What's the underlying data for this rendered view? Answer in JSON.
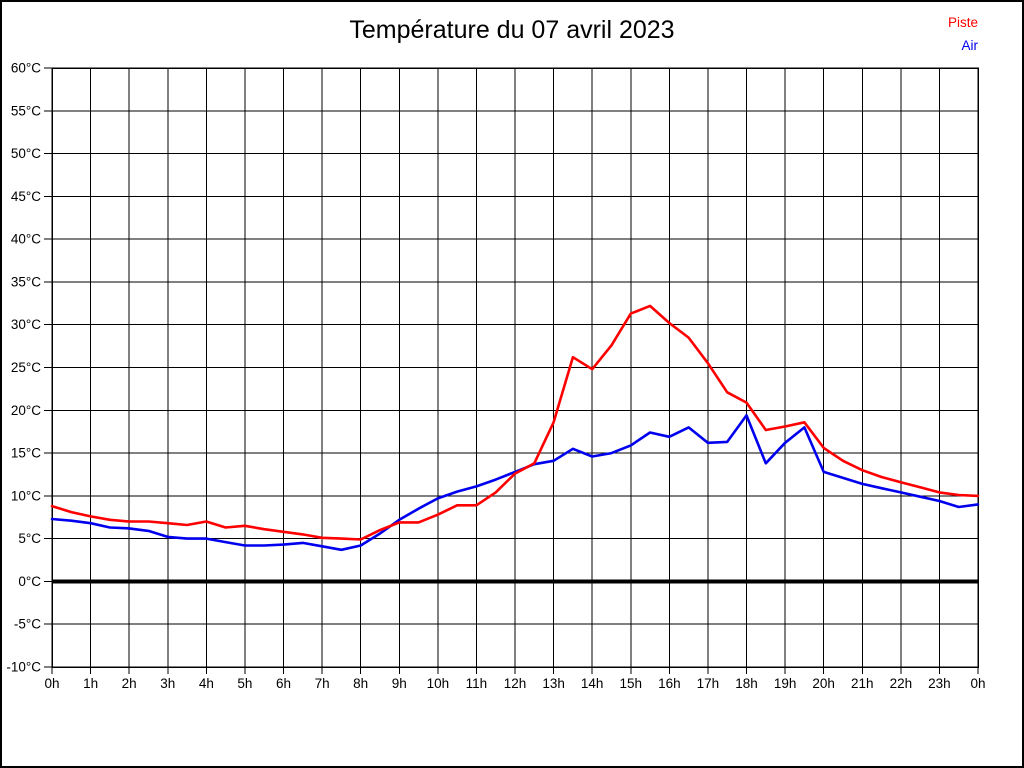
{
  "title": "Température du 07 avril 2023",
  "legend": [
    {
      "label": "Piste",
      "color": "#ff0000"
    },
    {
      "label": "Air",
      "color": "#0000ee"
    }
  ],
  "axes": {
    "y_tick_labels": [
      "60°C",
      "55°C",
      "50°C",
      "45°C",
      "40°C",
      "35°C",
      "30°C",
      "25°C",
      "20°C",
      "15°C",
      "10°C",
      "5°C",
      "0°C",
      "-5°C",
      "-10°C"
    ],
    "x_tick_labels": [
      "0h",
      "1h",
      "2h",
      "3h",
      "4h",
      "5h",
      "6h",
      "7h",
      "8h",
      "9h",
      "10h",
      "11h",
      "12h",
      "13h",
      "14h",
      "15h",
      "16h",
      "17h",
      "18h",
      "19h",
      "20h",
      "21h",
      "22h",
      "23h",
      "0h"
    ]
  },
  "chart_data": {
    "type": "line",
    "title": "Température du 07 avril 2023",
    "xlabel": "",
    "ylabel": "",
    "xlim": [
      0,
      24
    ],
    "ylim": [
      -10,
      60
    ],
    "y_tick_step": 5,
    "grid": true,
    "zero_line_value": 0,
    "legend_position": "top-right",
    "x": [
      0,
      0.5,
      1,
      1.5,
      2,
      2.5,
      3,
      3.5,
      4,
      4.5,
      5,
      5.5,
      6,
      6.5,
      7,
      7.5,
      8,
      8.5,
      9,
      9.5,
      10,
      10.5,
      11,
      11.5,
      12,
      12.5,
      13,
      13.5,
      14,
      14.5,
      15,
      15.5,
      16,
      16.5,
      17,
      17.5,
      18,
      18.5,
      19,
      19.5,
      20,
      20.5,
      21,
      21.5,
      22,
      22.5,
      23,
      23.5,
      24
    ],
    "series": [
      {
        "name": "Piste",
        "color": "#ff0000",
        "values": [
          8.8,
          8.1,
          7.6,
          7.2,
          7.0,
          7.0,
          6.8,
          6.6,
          7.0,
          6.3,
          6.5,
          6.1,
          5.8,
          5.5,
          5.1,
          5.0,
          4.9,
          6.0,
          6.9,
          6.9,
          7.8,
          8.9,
          8.9,
          10.4,
          12.6,
          13.8,
          18.6,
          26.2,
          24.8,
          27.6,
          31.3,
          32.2,
          30.2,
          28.5,
          25.5,
          22.1,
          20.9,
          17.7,
          18.1,
          18.6,
          15.6,
          14.1,
          13.0,
          12.2,
          11.6,
          11.0,
          10.4,
          10.1,
          10.0
        ]
      },
      {
        "name": "Air",
        "color": "#0000ee",
        "values": [
          7.3,
          7.1,
          6.8,
          6.3,
          6.2,
          5.9,
          5.2,
          5.0,
          5.0,
          4.6,
          4.2,
          4.2,
          4.3,
          4.5,
          4.1,
          3.7,
          4.2,
          5.6,
          7.2,
          8.5,
          9.7,
          10.5,
          11.1,
          11.9,
          12.8,
          13.7,
          14.1,
          15.5,
          14.6,
          15.0,
          15.9,
          17.4,
          16.9,
          18.0,
          16.2,
          16.3,
          19.4,
          13.8,
          16.2,
          18.0,
          12.8,
          12.1,
          11.4,
          10.9,
          10.4,
          9.9,
          9.4,
          8.7,
          9.0
        ]
      }
    ]
  }
}
